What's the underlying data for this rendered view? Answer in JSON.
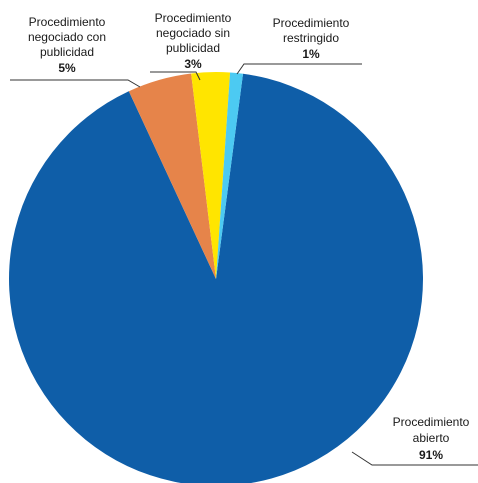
{
  "chart_data": {
    "type": "pie",
    "title": "",
    "slices": [
      {
        "label": [
          "Procedimiento",
          "abierto"
        ],
        "percent_label": "91%",
        "value": 91,
        "color": "#0f5ea8"
      },
      {
        "label": [
          "Procedimiento",
          "negociado con",
          "publicidad"
        ],
        "percent_label": "5%",
        "value": 5,
        "color": "#e6844a"
      },
      {
        "label": [
          "Procedimiento",
          "negociado sin",
          "publicidad"
        ],
        "percent_label": "3%",
        "value": 3,
        "color": "#ffe500"
      },
      {
        "label": [
          "Procedimiento",
          "restringido"
        ],
        "percent_label": "1%",
        "value": 1,
        "color": "#4ccaf2"
      }
    ],
    "legend": "none",
    "labels": "outside with leader lines"
  }
}
